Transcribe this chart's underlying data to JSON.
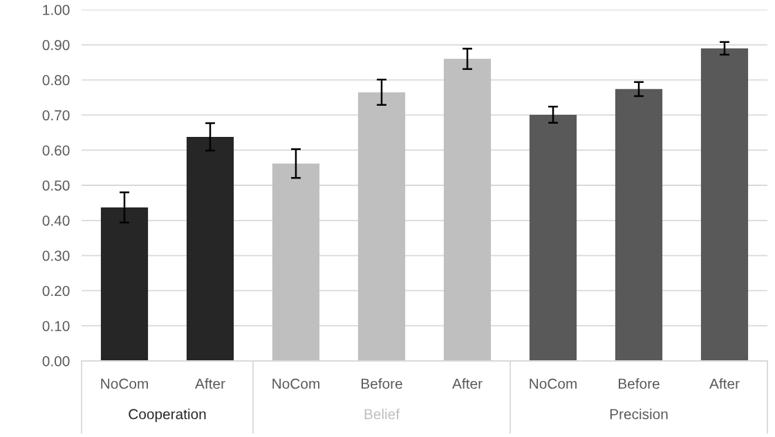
{
  "chart_data": {
    "type": "bar",
    "categories": [
      "NoCom",
      "After",
      "NoCom",
      "Before",
      "After",
      "NoCom",
      "Before",
      "After"
    ],
    "series": [
      {
        "name": "Cooperation",
        "color": "#262626",
        "values": [
          0.437,
          0.638,
          null,
          null,
          null,
          null,
          null,
          null
        ],
        "errors": [
          0.043,
          0.039,
          null,
          null,
          null,
          null,
          null,
          null
        ]
      },
      {
        "name": "Belief",
        "color": "#bfbfbf",
        "values": [
          null,
          null,
          0.562,
          0.765,
          0.86,
          null,
          null,
          null
        ],
        "errors": [
          null,
          null,
          0.041,
          0.036,
          0.029,
          null,
          null,
          null
        ]
      },
      {
        "name": "Precision",
        "color": "#595959",
        "values": [
          null,
          null,
          null,
          null,
          null,
          0.701,
          0.774,
          0.89
        ],
        "errors": [
          null,
          null,
          null,
          null,
          null,
          0.023,
          0.02,
          0.018
        ]
      }
    ],
    "ylim": [
      0,
      1
    ],
    "yticks": [
      {
        "value": 0,
        "label": "0.00"
      },
      {
        "value": 0.1,
        "label": "0.10"
      },
      {
        "value": 0.2,
        "label": "0.20"
      },
      {
        "value": 0.3,
        "label": "0.30"
      },
      {
        "value": 0.4,
        "label": "0.40"
      },
      {
        "value": 0.5,
        "label": "0.50"
      },
      {
        "value": 0.6,
        "label": "0.60"
      },
      {
        "value": 0.7,
        "label": "0.70"
      },
      {
        "value": 0.8,
        "label": "0.80"
      },
      {
        "value": 0.9,
        "label": "0.90"
      },
      {
        "value": 1,
        "label": "1.00"
      }
    ],
    "grid": "y"
  }
}
